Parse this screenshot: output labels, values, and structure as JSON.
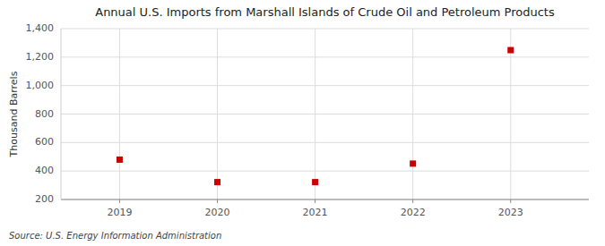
{
  "chart_data": {
    "type": "scatter",
    "title": "Annual U.S. Imports from Marshall Islands of Crude Oil and Petroleum Products",
    "y_label": "Thousand Barrels",
    "annotations": [
      "Source: U.S. Energy Information Administration"
    ],
    "x": [
      2019,
      2020,
      2021,
      2022,
      2023
    ],
    "values": [
      480,
      322,
      322,
      452,
      1249
    ],
    "color": "#cc0000",
    "marker": "square",
    "xlim": [
      2018.4,
      2023.8
    ],
    "xticks": [
      2019,
      2020,
      2021,
      2022,
      2023
    ],
    "ylim": [
      200,
      1400
    ],
    "yticks": [
      200,
      400,
      600,
      800,
      {
        "value": 1000,
        "label": "1,000"
      },
      {
        "value": 1200,
        "label": "1,200"
      },
      {
        "value": 1400,
        "label": "1,400"
      }
    ],
    "grid": true
  }
}
